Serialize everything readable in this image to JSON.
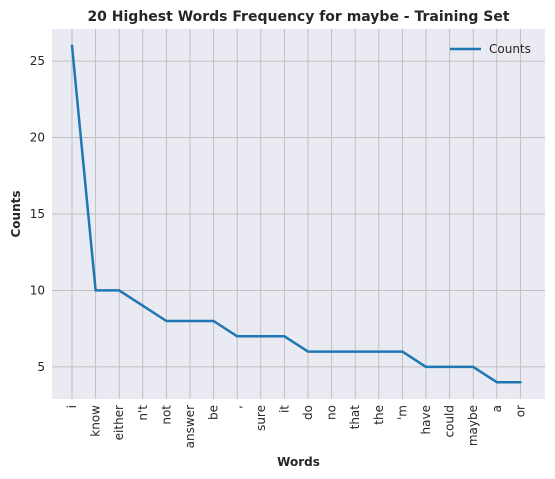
{
  "chart_data": {
    "type": "line",
    "title": "20 Highest Words Frequency for maybe - Training Set",
    "xlabel": "Words",
    "ylabel": "Counts",
    "categories": [
      "i",
      "know",
      "either",
      "n't",
      "not",
      "answer",
      "be",
      ",",
      "sure",
      "it",
      "do",
      "no",
      "that",
      "the",
      "'m",
      "have",
      "could",
      "maybe",
      "a",
      "or"
    ],
    "series": [
      {
        "name": "Counts",
        "values": [
          26,
          10,
          10,
          9,
          8,
          8,
          8,
          7,
          7,
          7,
          6,
          6,
          6,
          6,
          6,
          5,
          5,
          5,
          4,
          4
        ]
      }
    ],
    "yticks": [
      5,
      10,
      15,
      20,
      25
    ],
    "ylim": [
      2.9,
      27.1
    ],
    "grid": true,
    "legend_position": "top-right",
    "colors": {
      "line": "#1f77b4",
      "plot_background": "#eaeaf2",
      "grid": "#c0c0c0",
      "text": "#262626"
    }
  }
}
